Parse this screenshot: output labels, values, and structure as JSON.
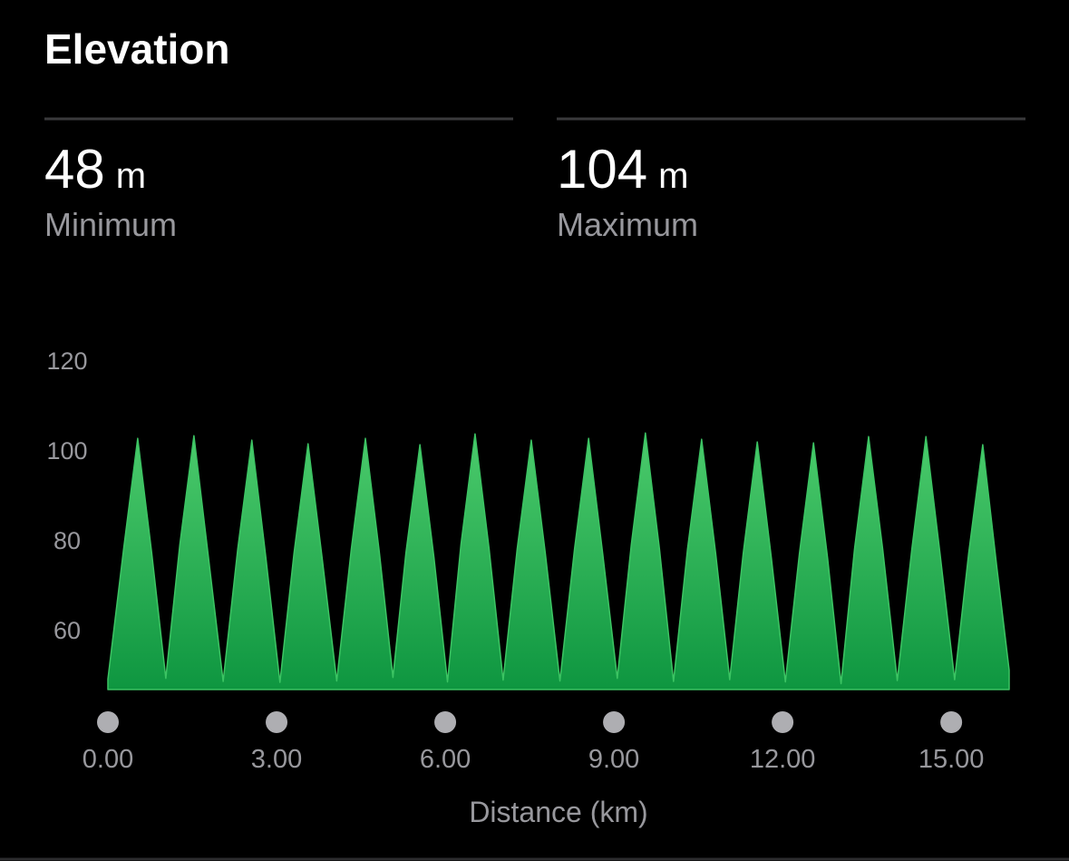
{
  "header": {
    "title": "Elevation"
  },
  "stats": [
    {
      "value": 48,
      "unit": "m",
      "label": "Minimum"
    },
    {
      "value": 104,
      "unit": "m",
      "label": "Maximum"
    }
  ],
  "chart_data": {
    "type": "area",
    "x_label": "Distance (km)",
    "color": "#3cc463",
    "gradient": [
      "#4ccb6c",
      "#0e9640"
    ],
    "x": [
      0,
      0.28,
      0.53,
      0.78,
      1.03,
      1.28,
      1.53,
      1.78,
      2.05,
      2.31,
      2.56,
      2.81,
      3.06,
      3.31,
      3.56,
      3.81,
      4.07,
      4.33,
      4.58,
      4.83,
      5.07,
      5.3,
      5.55,
      5.8,
      6.04,
      6.28,
      6.53,
      6.78,
      7.03,
      7.28,
      7.53,
      7.78,
      8.04,
      8.3,
      8.55,
      8.8,
      9.06,
      9.31,
      9.56,
      9.81,
      10.06,
      10.31,
      10.56,
      10.81,
      11.06,
      11.3,
      11.55,
      11.8,
      12.05,
      12.3,
      12.55,
      12.8,
      13.04,
      13.28,
      13.53,
      13.78,
      14.04,
      14.3,
      14.55,
      14.8,
      15.06,
      15.31,
      15.56,
      15.81,
      16.03
    ],
    "values": [
      49,
      78,
      102.6,
      77,
      49.2,
      79,
      103.2,
      77,
      48.5,
      78,
      102.2,
      76,
      48.3,
      77,
      101.4,
      76,
      48.6,
      78,
      102.6,
      77,
      49.4,
      77,
      101.2,
      76,
      48.4,
      79,
      103.6,
      78,
      48.8,
      78,
      102.2,
      77,
      48.6,
      78,
      102.6,
      77,
      49.2,
      79,
      103.8,
      78,
      48.5,
      78,
      102.4,
      77,
      48.9,
      77,
      101.8,
      76,
      48.4,
      77,
      101.6,
      76,
      48,
      78,
      103,
      78,
      48.7,
      78,
      103,
      77,
      48.9,
      77,
      101.2,
      74,
      51
    ],
    "xlim": [
      0,
      16.03
    ],
    "ylim": [
      46.7,
      120
    ],
    "xticks": [
      {
        "value": 0,
        "label": "0.00"
      },
      {
        "value": 3,
        "label": "3.00"
      },
      {
        "value": 6,
        "label": "6.00"
      },
      {
        "value": 9,
        "label": "9.00"
      },
      {
        "value": 12,
        "label": "12.00"
      },
      {
        "value": 15,
        "label": "15.00"
      }
    ],
    "yticks": [
      60,
      80,
      100,
      120
    ]
  }
}
